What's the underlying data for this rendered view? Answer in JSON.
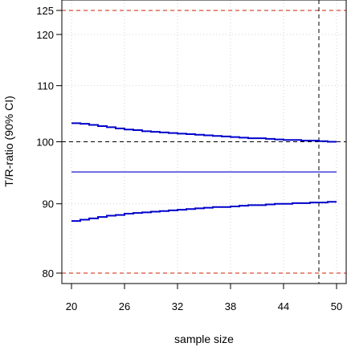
{
  "chart_data": {
    "type": "line",
    "xlabel": "sample size",
    "ylabel": "T/R-ratio  (90% CI)",
    "xlim": [
      19,
      51
    ],
    "ylim": [
      78,
      126
    ],
    "y_scale": "log",
    "grid": true,
    "x_ticks": [
      20,
      26,
      32,
      38,
      44,
      50
    ],
    "x_tick_labels": [
      "20",
      "26",
      "32",
      "38",
      "44",
      "50"
    ],
    "y_ticks": [
      80,
      90,
      100,
      110,
      120,
      125
    ],
    "y_tick_labels": [
      "80",
      "90",
      "100",
      "110",
      "120",
      "125"
    ],
    "reference_lines": [
      {
        "axis": "y",
        "value": 80,
        "style": "dashed",
        "color": "#cc2200"
      },
      {
        "axis": "y",
        "value": 125,
        "style": "dashed",
        "color": "#cc2200"
      },
      {
        "axis": "y",
        "value": 100,
        "style": "dashed",
        "color": "#000000"
      },
      {
        "axis": "x",
        "value": 48,
        "style": "dashed",
        "color": "#000000"
      }
    ],
    "series": [
      {
        "role": "upper-ci",
        "step": true,
        "color": "#0000cc",
        "x": [
          20,
          21,
          22,
          23,
          24,
          25,
          26,
          27,
          28,
          29,
          30,
          31,
          32,
          33,
          34,
          35,
          36,
          37,
          38,
          39,
          40,
          41,
          42,
          43,
          44,
          45,
          46,
          47,
          48,
          49,
          50
        ],
        "y": [
          103.2,
          103.1,
          102.9,
          102.7,
          102.5,
          102.3,
          102.1,
          102.0,
          101.8,
          101.7,
          101.6,
          101.5,
          101.4,
          101.3,
          101.2,
          101.1,
          101.0,
          100.9,
          100.8,
          100.7,
          100.6,
          100.6,
          100.5,
          100.4,
          100.3,
          100.3,
          100.2,
          100.2,
          100.1,
          100.0,
          100.0
        ]
      },
      {
        "role": "point-estimate",
        "step": false,
        "color": "#0000cc",
        "x": [
          20,
          50
        ],
        "y": [
          95.0,
          95.0
        ]
      },
      {
        "role": "lower-ci",
        "step": true,
        "color": "#0000cc",
        "x": [
          20,
          21,
          22,
          23,
          24,
          25,
          26,
          27,
          28,
          29,
          30,
          31,
          32,
          33,
          34,
          35,
          36,
          37,
          38,
          39,
          40,
          41,
          42,
          43,
          44,
          45,
          46,
          47,
          48,
          49,
          50
        ],
        "y": [
          87.4,
          87.6,
          87.8,
          88.0,
          88.2,
          88.3,
          88.5,
          88.6,
          88.7,
          88.8,
          88.9,
          89.0,
          89.1,
          89.2,
          89.3,
          89.4,
          89.5,
          89.5,
          89.6,
          89.7,
          89.8,
          89.8,
          89.9,
          90.0,
          90.0,
          90.1,
          90.1,
          90.2,
          90.2,
          90.3,
          90.3
        ]
      }
    ]
  }
}
